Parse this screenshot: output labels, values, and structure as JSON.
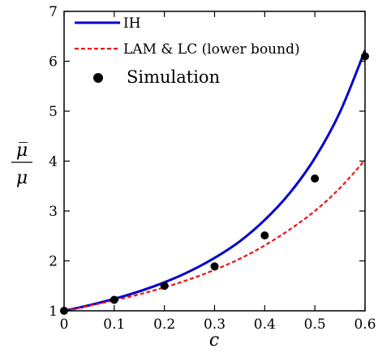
{
  "chart_data": {
    "type": "line",
    "xlabel": "c",
    "ylabel_top": "μ̅",
    "ylabel_bottom": "μ",
    "xlim": [
      0,
      0.6
    ],
    "ylim": [
      1,
      7
    ],
    "xticks": [
      0,
      0.1,
      0.2,
      0.3,
      0.4,
      0.5,
      0.6
    ],
    "xtick_labels": [
      "0",
      "0.1",
      "0.2",
      "0.3",
      "0.4",
      "0.5",
      "0.6"
    ],
    "yticks": [
      1,
      2,
      3,
      4,
      5,
      6,
      7
    ],
    "ytick_labels": [
      "1",
      "2",
      "3",
      "4",
      "5",
      "6",
      "7"
    ],
    "grid": false,
    "legend_position": "top-left",
    "series": [
      {
        "name": "IH",
        "style": "solid-line",
        "color": "#0000cc",
        "x": [
          0,
          0.05,
          0.1,
          0.15,
          0.2,
          0.25,
          0.3,
          0.35,
          0.4,
          0.45,
          0.5,
          0.55,
          0.6
        ],
        "y": [
          1.0,
          1.11,
          1.24,
          1.39,
          1.57,
          1.79,
          2.06,
          2.39,
          2.82,
          3.36,
          4.06,
          4.98,
          6.22
        ]
      },
      {
        "name": "LAM & LC (lower bound)",
        "style": "dashed-line",
        "color": "#ee1111",
        "x": [
          0,
          0.05,
          0.1,
          0.15,
          0.2,
          0.25,
          0.3,
          0.35,
          0.4,
          0.45,
          0.5,
          0.55,
          0.6
        ],
        "y": [
          1.0,
          1.1,
          1.21,
          1.33,
          1.47,
          1.63,
          1.82,
          2.04,
          2.31,
          2.63,
          3.0,
          3.46,
          4.02
        ]
      },
      {
        "name": "Simulation",
        "style": "markers",
        "color": "#000000",
        "x": [
          0,
          0.1,
          0.2,
          0.3,
          0.4,
          0.5,
          0.6
        ],
        "y": [
          1.0,
          1.22,
          1.5,
          1.89,
          2.51,
          3.65,
          6.1
        ]
      }
    ]
  }
}
